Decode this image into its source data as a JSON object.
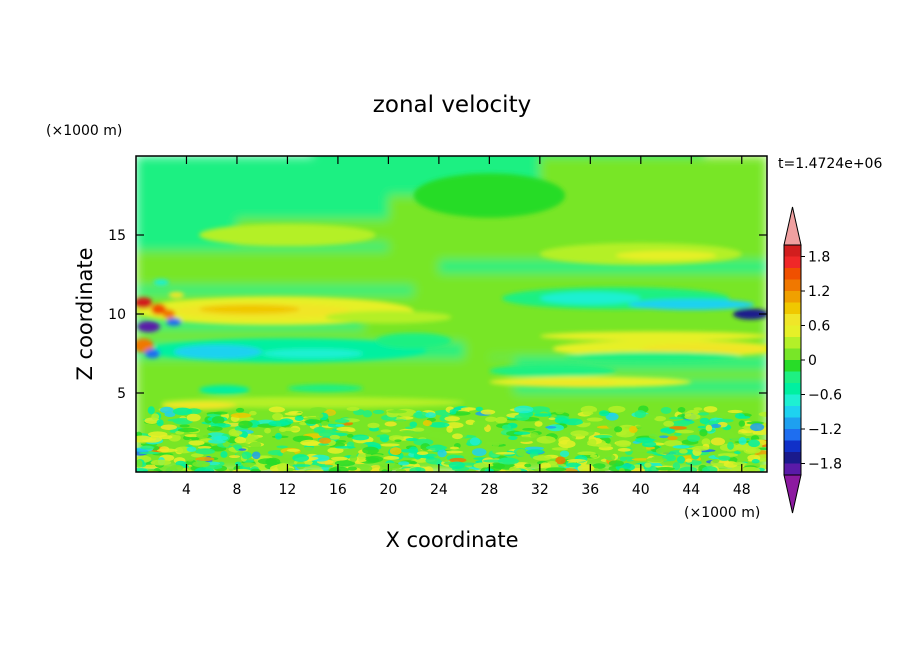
{
  "chart_data": {
    "type": "heatmap",
    "title": "zonal velocity",
    "xlabel": "X coordinate",
    "ylabel": "Z coordinate",
    "x_unit": "(×1000 m)",
    "y_unit": "(×1000 m)",
    "time_label": "t=1.4724e+06",
    "xlim": [
      0,
      50
    ],
    "ylim": [
      0,
      20
    ],
    "x_ticks": [
      4,
      8,
      12,
      16,
      20,
      24,
      28,
      32,
      36,
      40,
      44,
      48
    ],
    "y_ticks": [
      5,
      10,
      15
    ],
    "grid": false,
    "colorbar": {
      "placement": "right",
      "range": [
        -2.0,
        2.0
      ],
      "step": 0.2,
      "tick_values": [
        1.8,
        1.2,
        0.6,
        0,
        -0.6,
        -1.2,
        -1.8
      ],
      "tick_labels": [
        "1.8",
        "1.2",
        "0.6",
        "0",
        "−0.6",
        "−1.2",
        "−1.8"
      ],
      "colors": [
        "#8c1aa0",
        "#5a1aa8",
        "#1a1a8c",
        "#1030c8",
        "#1e6ef0",
        "#1ea0f0",
        "#1ed2f0",
        "#1ef0d2",
        "#00f0a0",
        "#1ef082",
        "#28dc28",
        "#78e628",
        "#b4f028",
        "#e6f028",
        "#f0e628",
        "#f0c800",
        "#f0a000",
        "#f07800",
        "#f05000",
        "#f02828",
        "#d21e1e",
        "#f0a0a0"
      ]
    },
    "features": [
      {
        "x": 0.5,
        "z": 10.5,
        "value": 1.8
      },
      {
        "x": 1.0,
        "z": 9.2,
        "value": -1.8
      },
      {
        "x": 0.5,
        "z": 8.0,
        "value": 1.2
      },
      {
        "x": 2.0,
        "z": 10.0,
        "value": 1.2
      },
      {
        "x": 10.0,
        "z": 10.2,
        "value": 0.8
      },
      {
        "x": 18.0,
        "z": 10.5,
        "value": 0.6
      },
      {
        "x": 6.5,
        "z": 7.7,
        "value": -1.0
      },
      {
        "x": 14.0,
        "z": 7.5,
        "value": -0.6
      },
      {
        "x": 22.0,
        "z": 8.5,
        "value": -0.4
      },
      {
        "x": 36.0,
        "z": 10.8,
        "value": -0.6
      },
      {
        "x": 45.0,
        "z": 10.5,
        "value": -1.2
      },
      {
        "x": 48.5,
        "z": 10.0,
        "value": -1.6
      },
      {
        "x": 38.0,
        "z": 7.8,
        "value": 0.6
      },
      {
        "x": 46.0,
        "z": 7.8,
        "value": 0.8
      },
      {
        "x": 40.0,
        "z": 9.0,
        "value": 0.4
      },
      {
        "x": 34.0,
        "z": 5.6,
        "value": 0.6
      },
      {
        "x": 14.0,
        "z": 4.5,
        "value": 0.4
      },
      {
        "x": 40.0,
        "z": 13.8,
        "value": 0.4
      },
      {
        "x": 12.0,
        "z": 15.0,
        "value": 0.2
      },
      {
        "x": 30.0,
        "z": 18.0,
        "value": -0.2
      },
      {
        "x": 42.0,
        "z": 16.0,
        "value": -0.2
      }
    ]
  }
}
